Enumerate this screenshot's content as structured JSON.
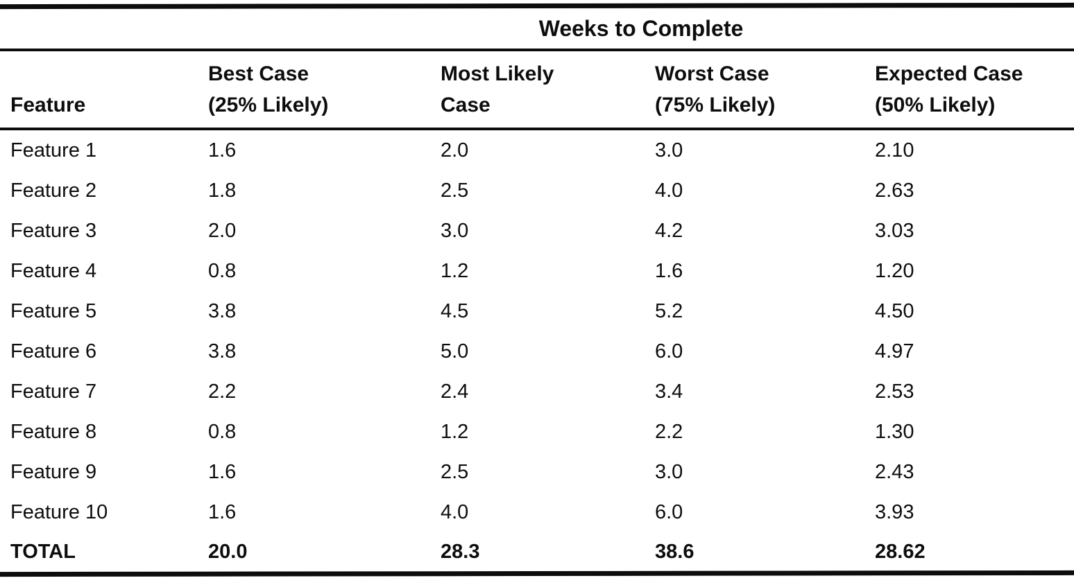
{
  "table": {
    "spanner_heading": "Weeks to Complete",
    "columns": [
      {
        "line1": "Feature",
        "line2": ""
      },
      {
        "line1": "Best Case",
        "line2": "(25% Likely)"
      },
      {
        "line1": "Most Likely",
        "line2": "Case"
      },
      {
        "line1": "Worst Case",
        "line2": "(75% Likely)"
      },
      {
        "line1": "Expected Case",
        "line2": "(50% Likely)"
      }
    ],
    "rows": [
      {
        "feature": "Feature 1",
        "best": "1.6",
        "most": "2.0",
        "worst": "3.0",
        "expected": "2.10"
      },
      {
        "feature": "Feature 2",
        "best": "1.8",
        "most": "2.5",
        "worst": "4.0",
        "expected": "2.63"
      },
      {
        "feature": "Feature 3",
        "best": "2.0",
        "most": "3.0",
        "worst": "4.2",
        "expected": "3.03"
      },
      {
        "feature": "Feature 4",
        "best": "0.8",
        "most": "1.2",
        "worst": "1.6",
        "expected": "1.20"
      },
      {
        "feature": "Feature 5",
        "best": "3.8",
        "most": "4.5",
        "worst": "5.2",
        "expected": "4.50"
      },
      {
        "feature": "Feature 6",
        "best": "3.8",
        "most": "5.0",
        "worst": "6.0",
        "expected": "4.97"
      },
      {
        "feature": "Feature 7",
        "best": "2.2",
        "most": "2.4",
        "worst": "3.4",
        "expected": "2.53"
      },
      {
        "feature": "Feature 8",
        "best": "0.8",
        "most": "1.2",
        "worst": "2.2",
        "expected": "1.30"
      },
      {
        "feature": "Feature 9",
        "best": "1.6",
        "most": "2.5",
        "worst": "3.0",
        "expected": "2.43"
      },
      {
        "feature": "Feature 10",
        "best": "1.6",
        "most": "4.0",
        "worst": "6.0",
        "expected": "3.93"
      }
    ],
    "total": {
      "feature": "TOTAL",
      "best": "20.0",
      "most": "28.3",
      "worst": "38.6",
      "expected": "28.62"
    },
    "ink_color": "#0d0d0d",
    "background_color": "#ffffff"
  }
}
